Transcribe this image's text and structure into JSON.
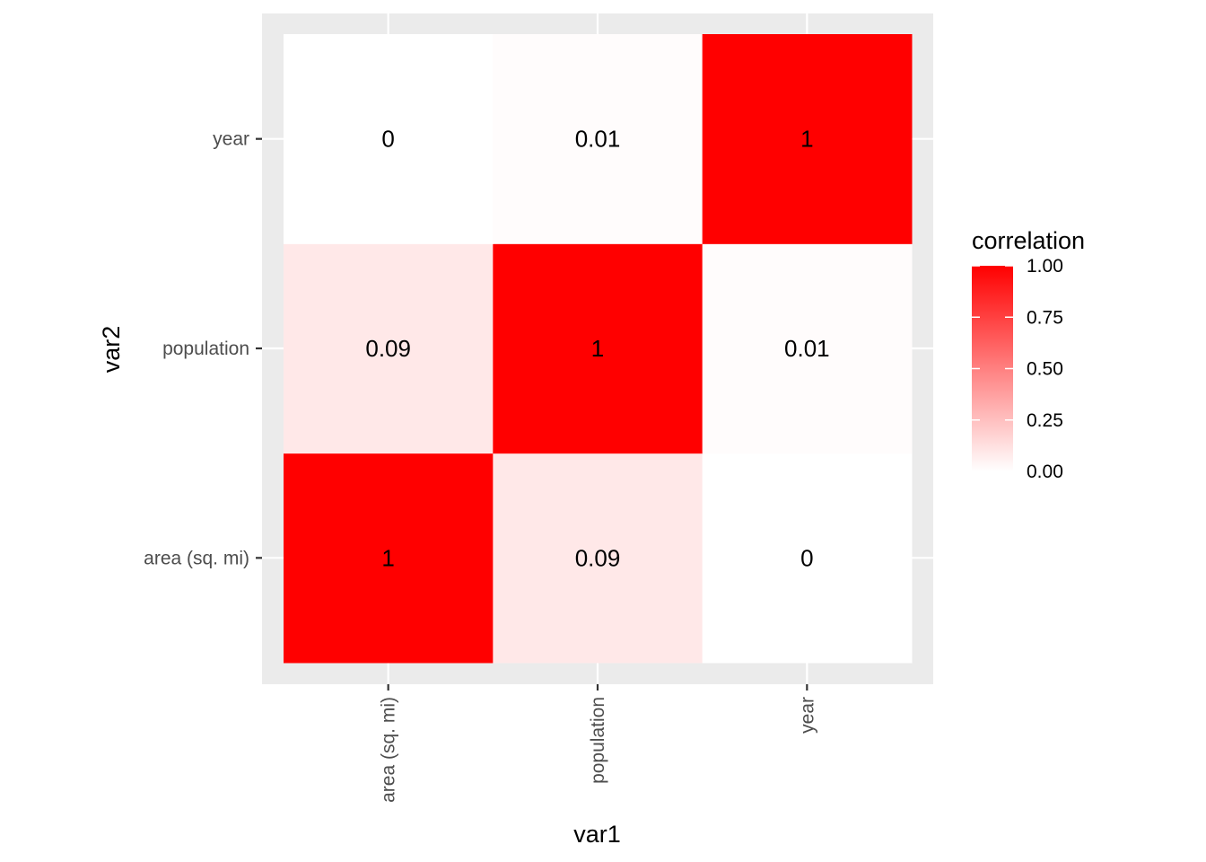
{
  "chart_data": {
    "type": "heatmap",
    "title": "",
    "xlabel": "var1",
    "ylabel": "var2",
    "x_categories": [
      "area (sq. mi)",
      "population",
      "year"
    ],
    "y_categories": [
      "area (sq. mi)",
      "population",
      "year"
    ],
    "cells": [
      {
        "x": "area (sq. mi)",
        "y": "area (sq. mi)",
        "value": 1,
        "label": "1"
      },
      {
        "x": "population",
        "y": "area (sq. mi)",
        "value": 0.09,
        "label": "0.09"
      },
      {
        "x": "year",
        "y": "area (sq. mi)",
        "value": 0,
        "label": "0"
      },
      {
        "x": "area (sq. mi)",
        "y": "population",
        "value": 0.09,
        "label": "0.09"
      },
      {
        "x": "population",
        "y": "population",
        "value": 1,
        "label": "1"
      },
      {
        "x": "year",
        "y": "population",
        "value": 0.01,
        "label": "0.01"
      },
      {
        "x": "area (sq. mi)",
        "y": "year",
        "value": 0,
        "label": "0"
      },
      {
        "x": "population",
        "y": "year",
        "value": 0.01,
        "label": "0.01"
      },
      {
        "x": "year",
        "y": "year",
        "value": 1,
        "label": "1"
      }
    ],
    "color_scale": {
      "low": "#ffffff",
      "high": "#ff0000",
      "limits": [
        0,
        1
      ]
    },
    "legend": {
      "title": "correlation",
      "position": "right",
      "breaks": [
        0,
        0.25,
        0.5,
        0.75,
        1
      ],
      "labels": [
        "0.00",
        "0.25",
        "0.50",
        "0.75",
        "1.00"
      ]
    },
    "grid": true,
    "panel_background": "#ebebeb",
    "grid_color": "#ffffff"
  }
}
